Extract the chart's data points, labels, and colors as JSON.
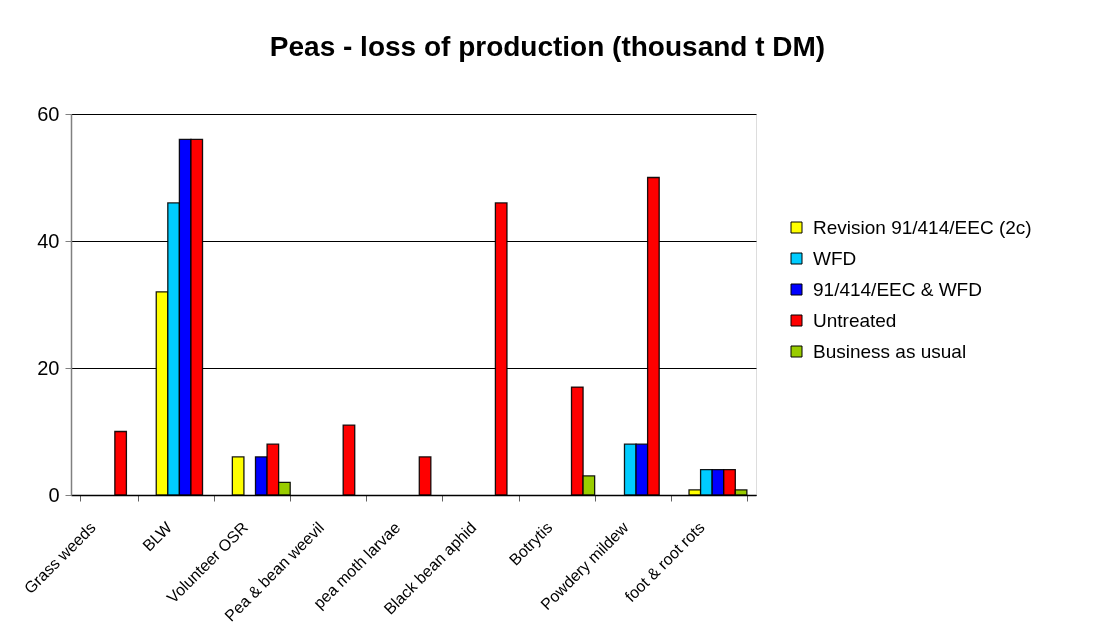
{
  "chart_data": {
    "type": "bar",
    "title": "Peas - loss of production (thousand t DM)",
    "categories": [
      "Grass weeds",
      "BLW",
      "Volunteer OSR",
      "Pea & bean weevil",
      "pea moth larvae",
      "Black bean aphid",
      "Botrytis",
      "Powdery mildew",
      "foot & root rots"
    ],
    "series": [
      {
        "name": "Revision 91/414/EEC (2c)",
        "color": "#ffff00",
        "values": [
          null,
          32,
          6,
          null,
          null,
          null,
          null,
          null,
          0.8
        ]
      },
      {
        "name": "WFD",
        "color": "#00ccff",
        "values": [
          null,
          46,
          null,
          null,
          null,
          null,
          null,
          8,
          4
        ]
      },
      {
        "name": "91/414/EEC & WFD",
        "color": "#0000ff",
        "values": [
          null,
          56,
          6,
          null,
          null,
          null,
          null,
          8,
          4
        ]
      },
      {
        "name": "Untreated",
        "color": "#ff0000",
        "values": [
          10,
          56,
          8,
          11,
          6,
          46,
          17,
          50,
          4
        ]
      },
      {
        "name": "Business as usual",
        "color": "#99cc00",
        "values": [
          null,
          null,
          2,
          null,
          null,
          null,
          3,
          null,
          0.8
        ]
      }
    ],
    "ylim": [
      0,
      60
    ],
    "yticks": [
      0,
      20,
      40,
      60
    ],
    "grid": "y",
    "legend": "right"
  }
}
